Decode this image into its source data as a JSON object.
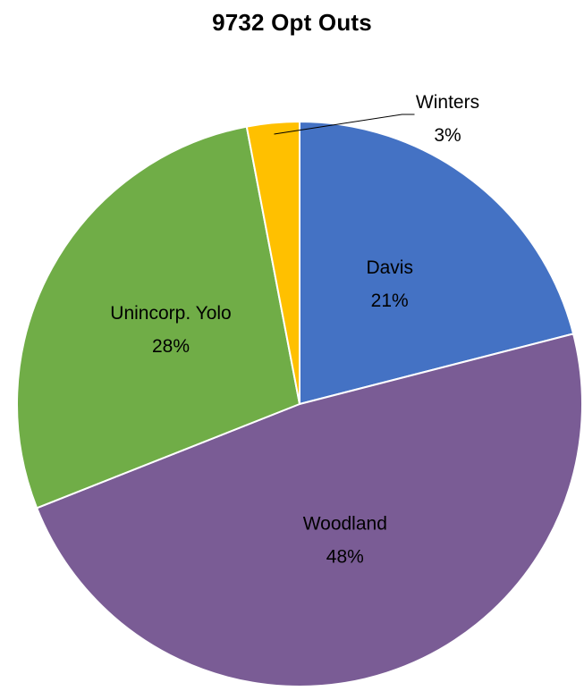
{
  "chart_data": {
    "type": "pie",
    "title": "9732 Opt Outs",
    "labels": [
      "Davis",
      "Woodland",
      "Unincorp. Yolo",
      "Winters"
    ],
    "values": [
      21,
      48,
      28,
      3
    ],
    "percent_labels": [
      "21%",
      "48%",
      "28%",
      "3%"
    ],
    "colors": [
      "#4472C4",
      "#7A5C95",
      "#70AD47",
      "#FFC000"
    ],
    "start": "12 o'clock",
    "direction": "clockwise",
    "legend": "none"
  }
}
